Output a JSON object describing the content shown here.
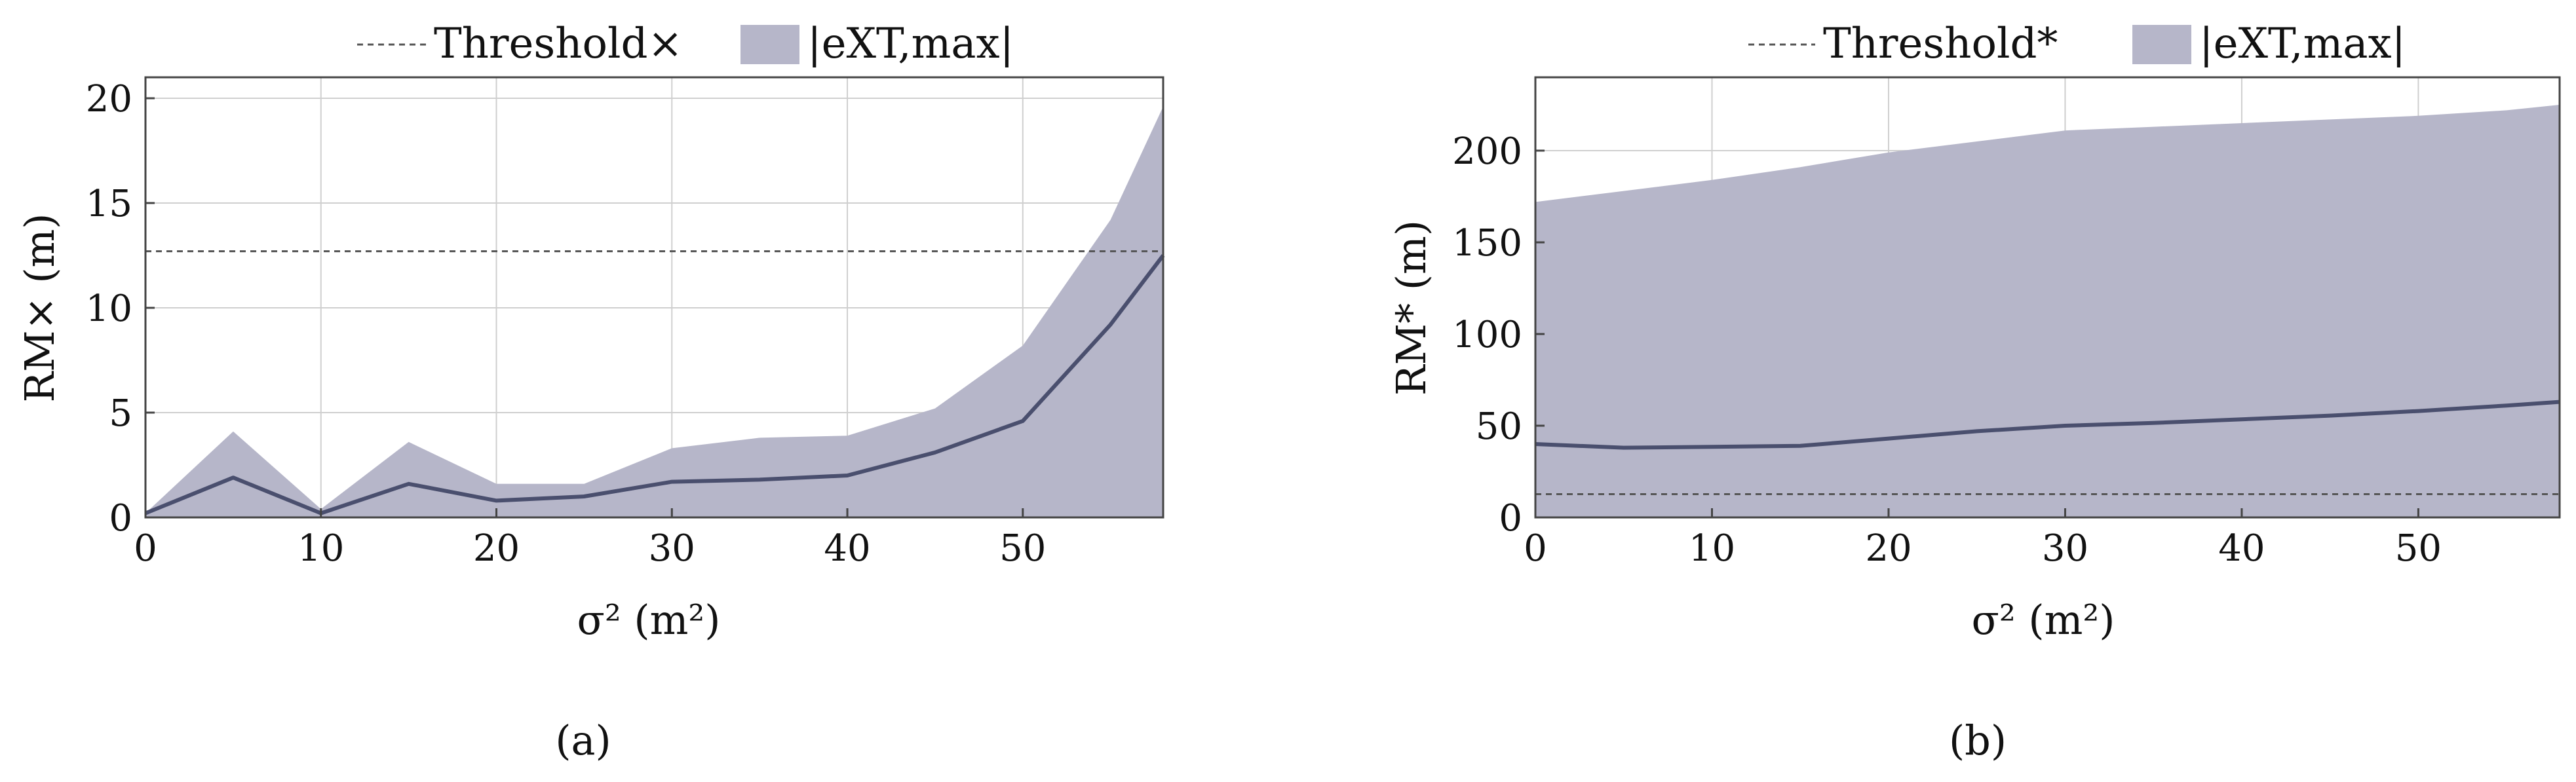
{
  "chart_data": [
    {
      "type": "area",
      "panel_label": "(a)",
      "xlabel": "σ² (m²)",
      "ylabel": "RM× (m)",
      "legend": {
        "placement": "top",
        "entries": [
          {
            "label": "Threshold×",
            "style": "dashed"
          },
          {
            "label": "|eXT,max|",
            "style": "fill"
          }
        ]
      },
      "xlim": [
        0,
        58
      ],
      "ylim": [
        0,
        21
      ],
      "xticks": [
        0,
        10,
        20,
        30,
        40,
        50
      ],
      "yticks": [
        0,
        5,
        10,
        15,
        20
      ],
      "grid": true,
      "threshold": 12.7,
      "x": [
        0,
        5,
        10,
        15,
        20,
        25,
        30,
        35,
        40,
        45,
        50,
        55,
        58
      ],
      "series": [
        {
          "role": "area",
          "values": [
            0.2,
            4.1,
            0.4,
            3.6,
            1.6,
            1.6,
            3.3,
            3.8,
            3.9,
            5.2,
            8.2,
            14.2,
            19.6
          ]
        },
        {
          "role": "line",
          "values": [
            0.2,
            1.9,
            0.2,
            1.6,
            0.8,
            1.0,
            1.7,
            1.8,
            2.0,
            3.1,
            4.6,
            9.2,
            12.5
          ]
        }
      ]
    },
    {
      "type": "area",
      "panel_label": "(b)",
      "xlabel": "σ² (m²)",
      "ylabel": "RM* (m)",
      "legend": {
        "placement": "top",
        "entries": [
          {
            "label": "Threshold*",
            "style": "dashed"
          },
          {
            "label": "|eXT,max|",
            "style": "fill"
          }
        ]
      },
      "xlim": [
        0,
        58
      ],
      "ylim": [
        0,
        240
      ],
      "xticks": [
        0,
        10,
        20,
        30,
        40,
        50
      ],
      "yticks": [
        0,
        50,
        100,
        150,
        200
      ],
      "grid": true,
      "threshold": 12.7,
      "x": [
        0,
        5,
        10,
        15,
        20,
        25,
        30,
        35,
        40,
        45,
        50,
        55,
        58
      ],
      "series": [
        {
          "role": "area",
          "values": [
            172,
            178,
            184,
            191,
            199,
            205,
            211,
            213,
            215,
            217,
            219,
            222,
            225
          ]
        },
        {
          "role": "line",
          "values": [
            40,
            38,
            38.5,
            39,
            43,
            47,
            50,
            51.5,
            53.5,
            55.5,
            58,
            61,
            63
          ]
        }
      ]
    }
  ],
  "style": {
    "fill_color": "#b6b6c9",
    "line_color": "#4a4f6e",
    "dash_color": "#555555",
    "grid_color": "#cfcfcf"
  }
}
